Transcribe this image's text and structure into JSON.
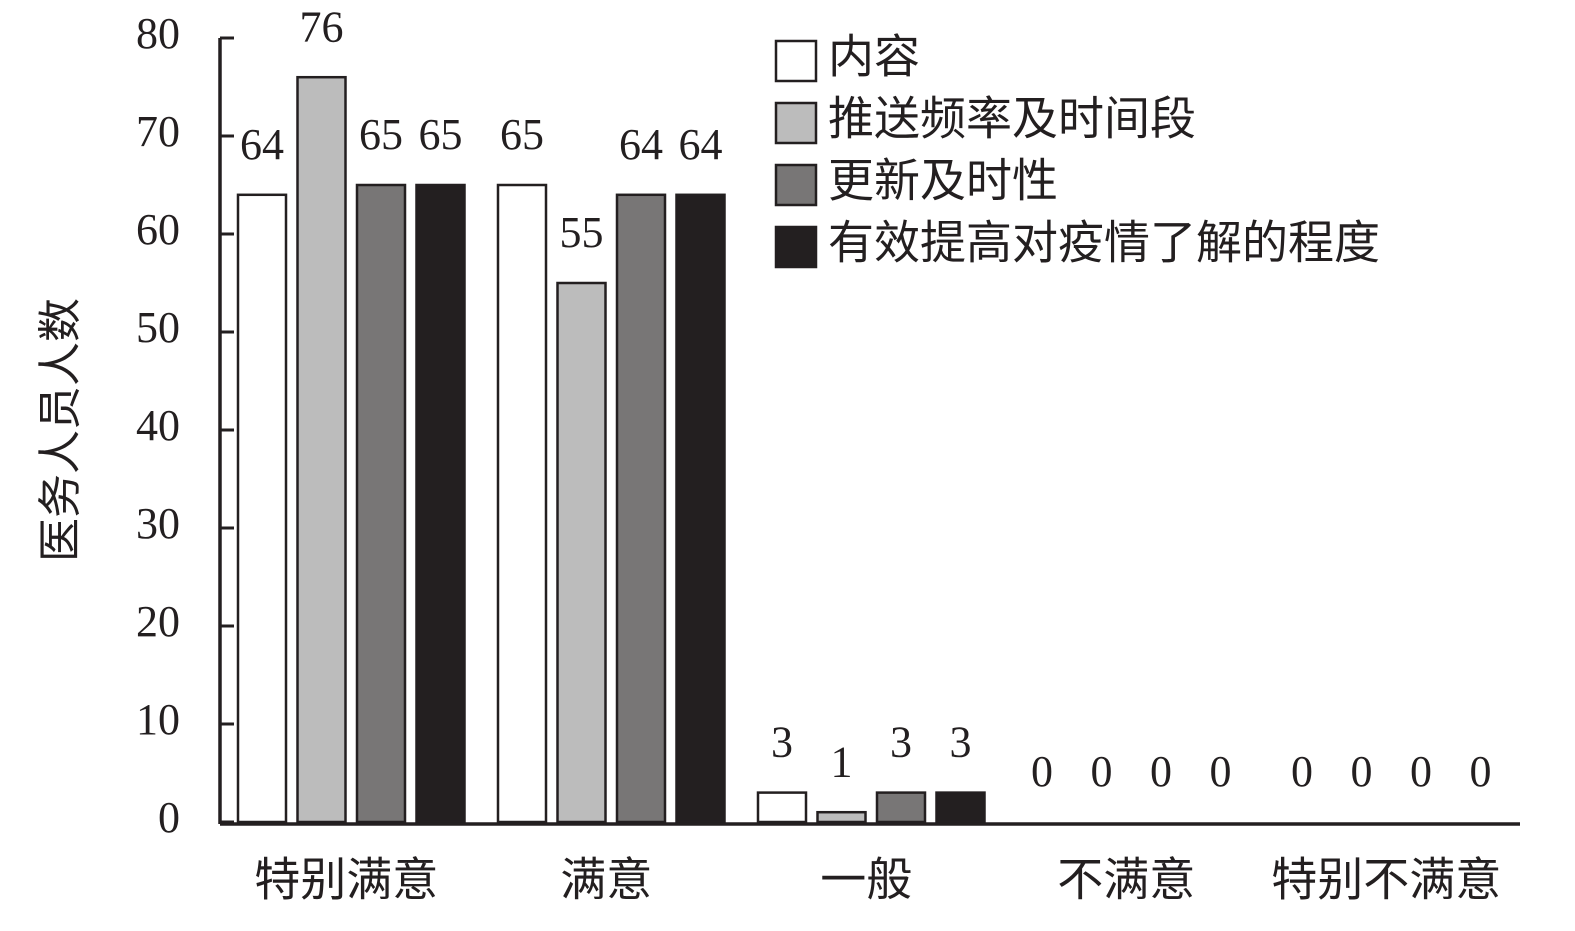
{
  "chart_data": {
    "type": "bar",
    "y_label": "医务人员人数",
    "categories": [
      "特别满意",
      "满意",
      "一般",
      "不满意",
      "特别不满意"
    ],
    "series": [
      {
        "name": "内容",
        "color": "#ffffff",
        "values": [
          64,
          65,
          3,
          0,
          0
        ]
      },
      {
        "name": "推送频率及时间段",
        "color": "#bcbcbc",
        "values": [
          76,
          55,
          1,
          0,
          0
        ]
      },
      {
        "name": "更新及时性",
        "color": "#787676",
        "values": [
          65,
          64,
          3,
          0,
          0
        ]
      },
      {
        "name": "有效提高对疫情了解的程度",
        "color": "#231f20",
        "values": [
          65,
          64,
          3,
          0,
          0
        ]
      }
    ],
    "ylim": [
      0,
      80
    ],
    "yticks": [
      0,
      10,
      20,
      30,
      40,
      50,
      60,
      70,
      80
    ],
    "legend": "upper right"
  }
}
